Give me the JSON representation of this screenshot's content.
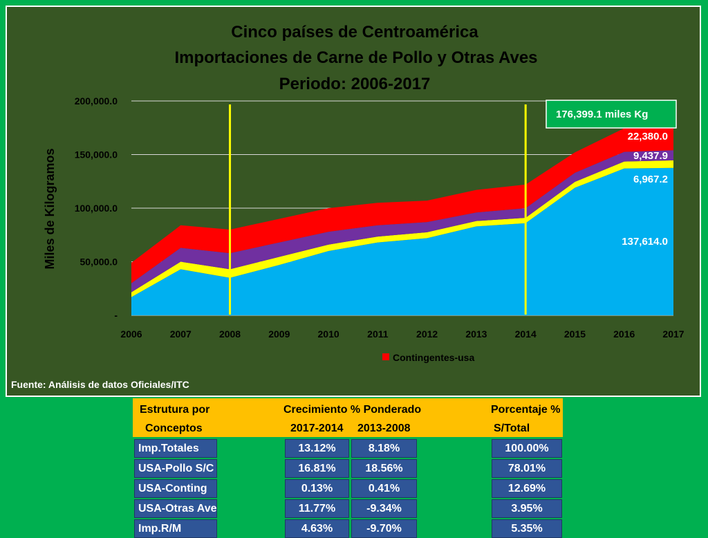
{
  "chart_data": {
    "type": "area",
    "title_lines": [
      "Cinco países de Centroamérica",
      "Importaciones de Carne de Pollo y Otras Aves",
      "Periodo: 2006-2017"
    ],
    "ylabel": "Miles de Kilogramos",
    "xlabel": "",
    "x": [
      "2006",
      "2007",
      "2008",
      "2009",
      "2010",
      "2011",
      "2012",
      "2013",
      "2014",
      "2015",
      "2016",
      "2017"
    ],
    "ylim": [
      0,
      200000
    ],
    "y_ticks": [
      {
        "value": 0,
        "label": "-"
      },
      {
        "value": 50000,
        "label": "50,000.0"
      },
      {
        "value": 100000,
        "label": "100,000.0"
      },
      {
        "value": 150000,
        "label": "150,000.0"
      },
      {
        "value": 200000,
        "label": "200,000.0"
      }
    ],
    "grid": true,
    "stacked": true,
    "series": [
      {
        "color": "#00b0f0",
        "values": [
          17000,
          43000,
          35000,
          47000,
          60000,
          68000,
          72000,
          83000,
          86000,
          119000,
          137000,
          137614
        ]
      },
      {
        "color": "#ffff00",
        "values": [
          4500,
          7000,
          8000,
          7500,
          6000,
          5500,
          5500,
          5000,
          5000,
          5500,
          6500,
          6967.2
        ]
      },
      {
        "color": "#7030a0",
        "values": [
          8500,
          13000,
          15000,
          13500,
          12000,
          10500,
          9500,
          8000,
          9000,
          8500,
          9000,
          9437.9
        ]
      },
      {
        "name": "Contingentes-usa",
        "color": "#ff0000",
        "values": [
          19000,
          21000,
          22000,
          22000,
          22000,
          21000,
          20000,
          21000,
          22000,
          19000,
          22000,
          22380
        ]
      }
    ],
    "legend": {
      "position": "bottom",
      "label": "Contingentes-usa",
      "color": "#ff0000"
    },
    "vertical_markers": {
      "color": "#ffff00",
      "years": [
        "2008",
        "2014"
      ]
    },
    "data_labels": [
      "22,380.0",
      "9,437.9",
      "6,967.2",
      "137,614.0"
    ],
    "total_callout": "176,399.1  miles Kg",
    "source": "Fuente: Análisis de datos Oficiales/ITC"
  },
  "table": {
    "header_row1": {
      "col1": "Estrutura por",
      "col2": "Crecimiento % Ponderado",
      "col3": "Porcentaje %"
    },
    "header_row2": {
      "col1": "Conceptos",
      "col2a": "2017-2014",
      "col2b": "2013-2008",
      "col3": "S/Total"
    },
    "rows": [
      {
        "concepto": "Imp.Totales",
        "c2017_2014": "13.12%",
        "c2013_2008": "8.18%",
        "s_total": "100.00%"
      },
      {
        "concepto": "USA-Pollo S/C",
        "c2017_2014": "16.81%",
        "c2013_2008": "18.56%",
        "s_total": "78.01%"
      },
      {
        "concepto": "USA-Conting",
        "c2017_2014": "0.13%",
        "c2013_2008": "0.41%",
        "s_total": "12.69%"
      },
      {
        "concepto": "USA-Otras Aves",
        "c2017_2014": "11.77%",
        "c2013_2008": "-9.34%",
        "s_total": "3.95%"
      },
      {
        "concepto": "Imp.R/M",
        "c2017_2014": "4.63%",
        "c2013_2008": "-9.70%",
        "s_total": "5.35%"
      }
    ]
  }
}
